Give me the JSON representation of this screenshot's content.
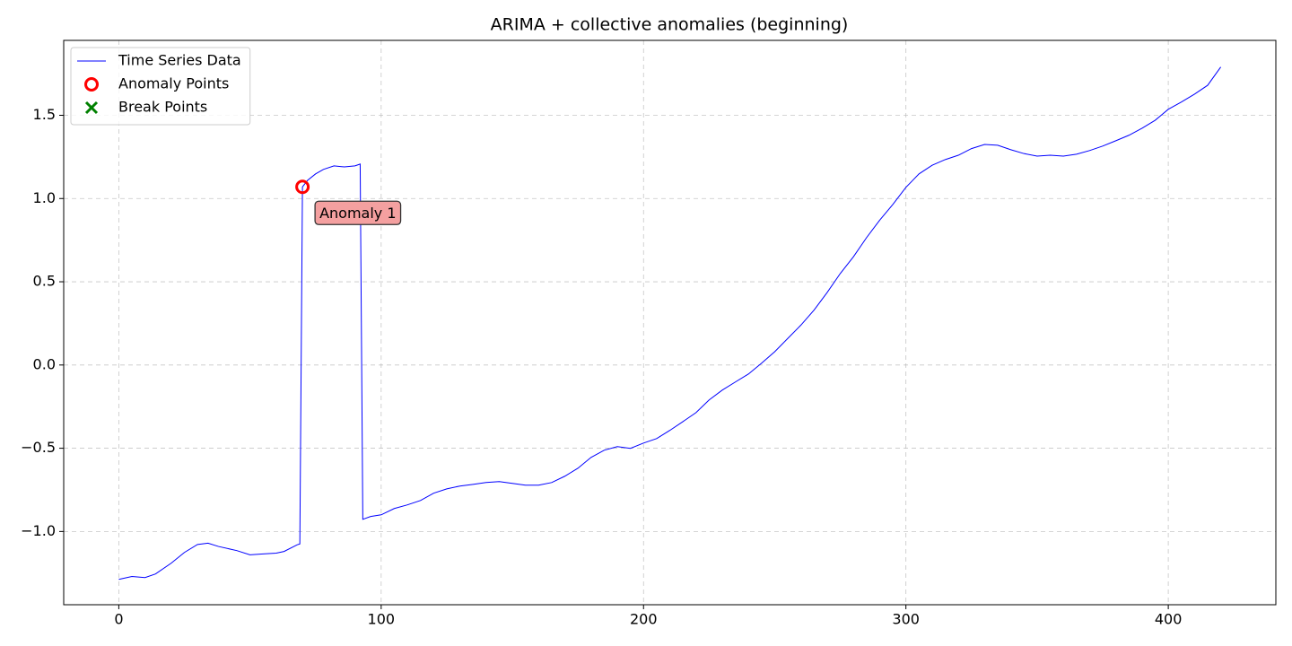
{
  "chart_data": {
    "type": "line",
    "title": "ARIMA + collective anomalies (beginning)",
    "xlim": [
      -21,
      441
    ],
    "ylim": [
      -1.44,
      1.95
    ],
    "xticks": [
      0,
      100,
      200,
      300,
      400
    ],
    "yticks": [
      {
        "value": -1,
        "label": "−1.0"
      },
      {
        "value": -0.5,
        "label": "−0.5"
      },
      {
        "value": 0,
        "label": "0.0"
      },
      {
        "value": 0.5,
        "label": "0.5"
      },
      {
        "value": 1,
        "label": "1.0"
      },
      {
        "value": 1.5,
        "label": "1.5"
      }
    ],
    "grid": true,
    "legend": "upper left",
    "series": [
      {
        "name": "Time Series Data",
        "type": "line",
        "color": "#0000ff",
        "x": [
          0,
          5,
          10,
          14,
          20,
          25,
          30,
          34,
          38,
          45,
          50,
          55,
          60,
          63,
          68,
          69,
          70,
          72,
          75,
          78,
          82,
          86,
          90,
          92,
          93,
          96,
          100,
          105,
          110,
          115,
          120,
          125,
          130,
          135,
          140,
          145,
          150,
          155,
          160,
          165,
          170,
          175,
          180,
          185,
          190,
          195,
          200,
          205,
          210,
          215,
          220,
          225,
          230,
          235,
          240,
          245,
          250,
          255,
          260,
          265,
          270,
          275,
          280,
          285,
          290,
          295,
          300,
          305,
          310,
          315,
          320,
          325,
          330,
          335,
          340,
          345,
          350,
          355,
          360,
          365,
          370,
          375,
          380,
          385,
          390,
          395,
          400,
          405,
          410,
          415,
          420
        ],
        "values": [
          -1.288,
          -1.27,
          -1.277,
          -1.255,
          -1.19,
          -1.126,
          -1.078,
          -1.07,
          -1.09,
          -1.115,
          -1.14,
          -1.135,
          -1.13,
          -1.12,
          -1.08,
          -1.075,
          1.07,
          1.11,
          1.148,
          1.175,
          1.196,
          1.19,
          1.196,
          1.207,
          -0.927,
          -0.91,
          -0.9,
          -0.862,
          -0.84,
          -0.814,
          -0.77,
          -0.744,
          -0.727,
          -0.717,
          -0.706,
          -0.7,
          -0.711,
          -0.722,
          -0.722,
          -0.706,
          -0.668,
          -0.62,
          -0.555,
          -0.512,
          -0.49,
          -0.501,
          -0.469,
          -0.442,
          -0.393,
          -0.34,
          -0.286,
          -0.21,
          -0.151,
          -0.102,
          -0.054,
          0.011,
          0.08,
          0.16,
          0.24,
          0.33,
          0.436,
          0.55,
          0.65,
          0.765,
          0.87,
          0.964,
          1.067,
          1.148,
          1.2,
          1.234,
          1.26,
          1.3,
          1.325,
          1.32,
          1.293,
          1.27,
          1.255,
          1.26,
          1.255,
          1.266,
          1.288,
          1.315,
          1.347,
          1.38,
          1.422,
          1.47,
          1.536,
          1.58,
          1.627,
          1.68,
          1.79
        ]
      },
      {
        "name": "Anomaly Points",
        "type": "scatter",
        "marker": "o",
        "color": "#ff0000",
        "x": [
          70
        ],
        "values": [
          1.07
        ]
      },
      {
        "name": "Break Points",
        "type": "scatter",
        "marker": "x",
        "color": "#008000",
        "x": [],
        "values": []
      }
    ],
    "annotations": [
      {
        "text": "Anomaly 1"
      }
    ]
  }
}
